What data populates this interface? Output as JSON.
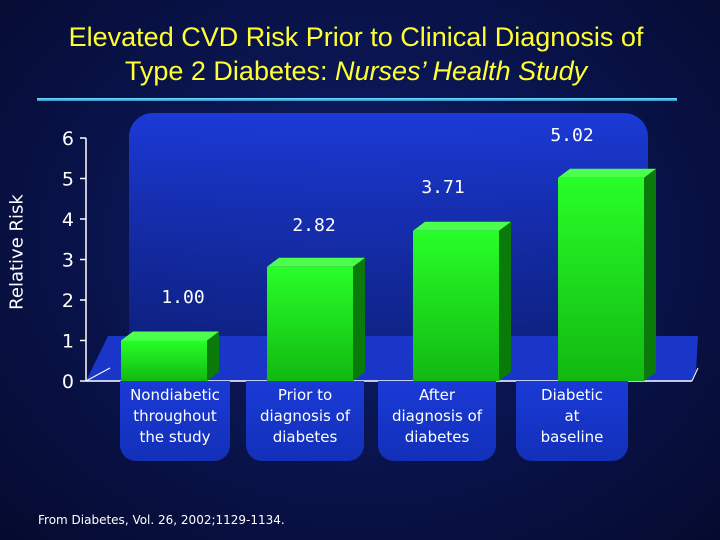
{
  "slide": {
    "title_line1": "Elevated CVD Risk Prior to Clinical Diagnosis of",
    "title_line2_plain": "Type 2 Diabetes: ",
    "title_line2_italic": "Nurses’ Health Study",
    "source": "From Diabetes, Vol. 26, 2002;1129-1134."
  },
  "chart_data": {
    "type": "bar",
    "title": "",
    "ylabel": "Relative Risk",
    "xlabel": "",
    "ylim": [
      0,
      6
    ],
    "yticks": [
      "0",
      "1",
      "2",
      "3",
      "4",
      "5",
      "6"
    ],
    "categories": [
      "Nondiabetic throughout the study",
      "Prior to diagnosis of diabetes",
      "After diagnosis of diabetes",
      "Diabetic at baseline"
    ],
    "category_lines": [
      [
        "Nondiabetic",
        "throughout",
        "the study"
      ],
      [
        "Prior to",
        "diagnosis of",
        "diabetes"
      ],
      [
        "After",
        "diagnosis of",
        "diabetes"
      ],
      [
        "Diabetic",
        "at",
        "baseline"
      ]
    ],
    "values": [
      1.0,
      2.82,
      3.71,
      5.02
    ],
    "data_labels": [
      "1.00",
      "2.82",
      "3.71",
      "5.02"
    ],
    "bar_color": "#22ee22",
    "grid": false
  }
}
